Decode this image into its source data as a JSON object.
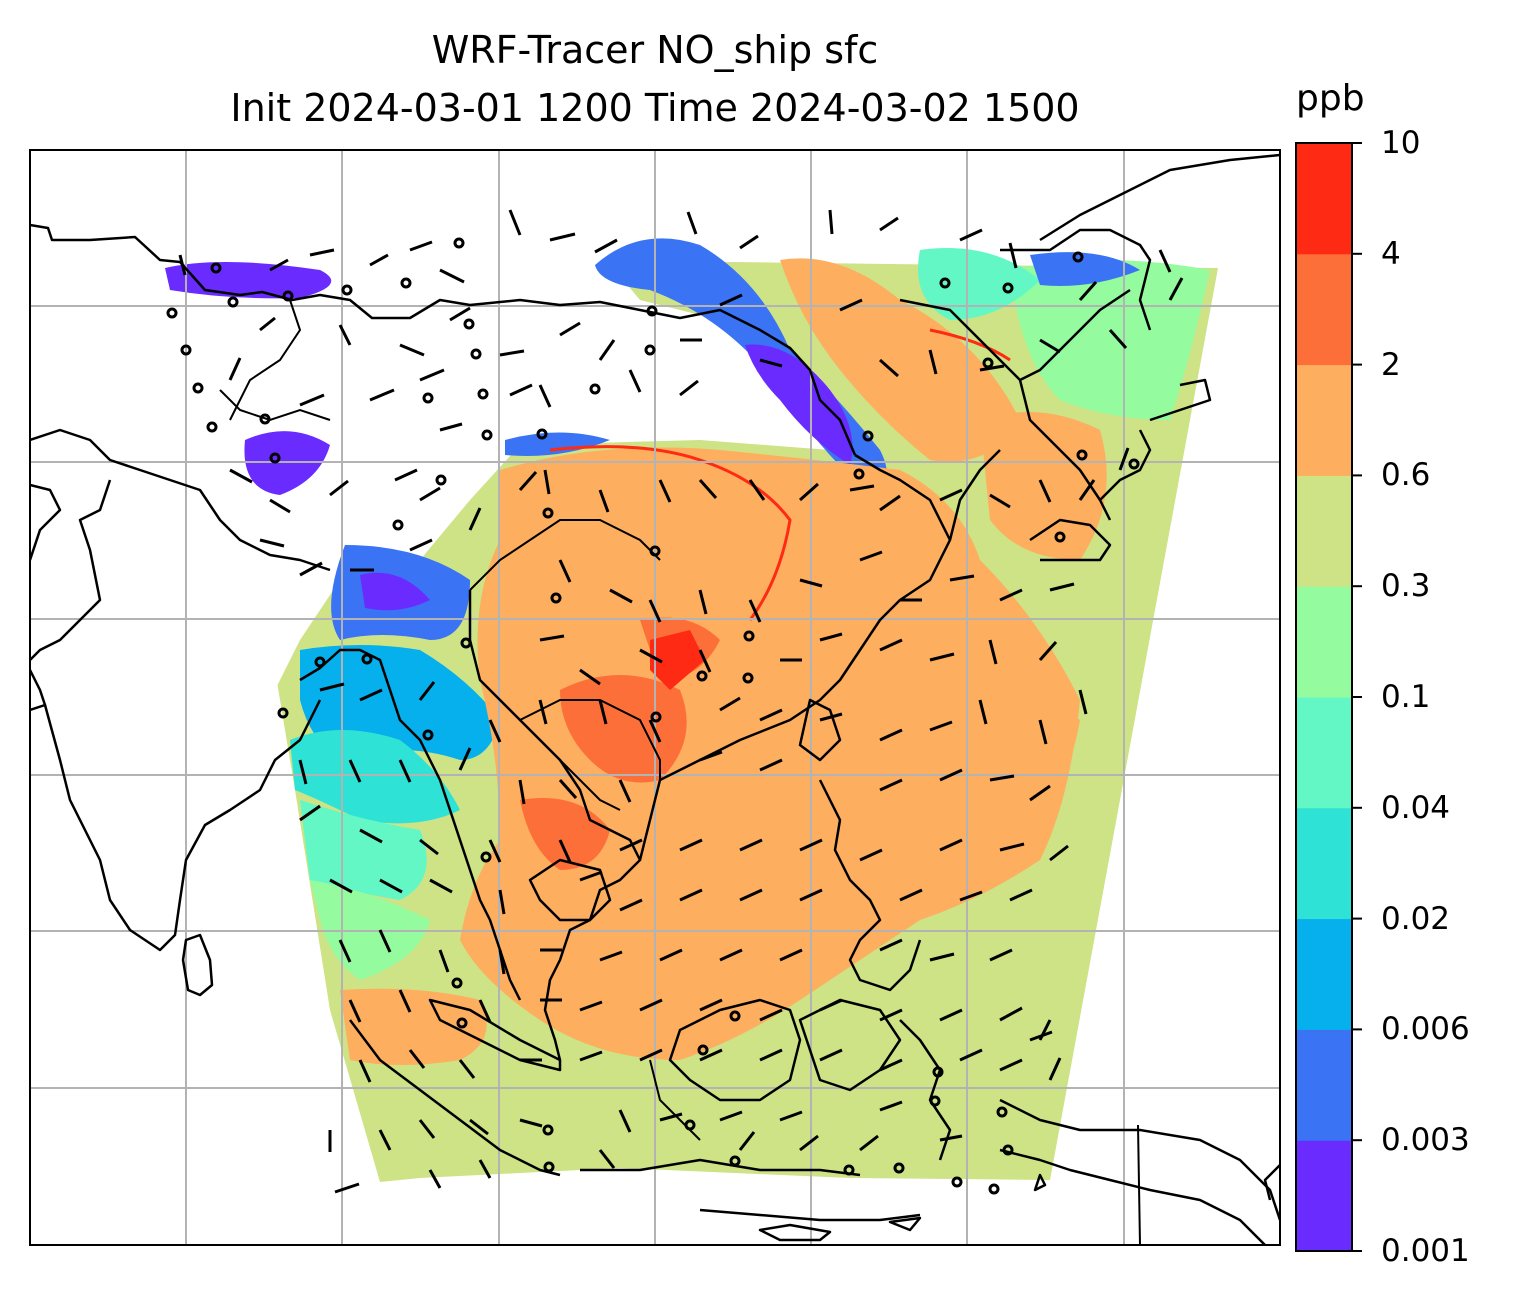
{
  "title": {
    "line1": "WRF-Tracer NO_ship sfc",
    "line2": "Init 2024-03-01 1200 Time 2024-03-02 1500"
  },
  "colorbar": {
    "unit": "ppb",
    "tick_labels": [
      "0.001",
      "0.003",
      "0.006",
      "0.02",
      "0.04",
      "0.1",
      "0.3",
      "0.6",
      "2",
      "4",
      "10"
    ],
    "colors": [
      "#6a2bff",
      "#3b73f5",
      "#06b0ec",
      "#2fe2d6",
      "#62f7c4",
      "#95fb9f",
      "#cde385",
      "#fdae5f",
      "#fd6f38",
      "#ff2a14"
    ]
  },
  "map": {
    "features": [
      "coastlines",
      "country-borders",
      "lat-lon-gridlines",
      "wind-barbs",
      "tracer-concentration-fill"
    ],
    "domain_fill_color": "#cde385",
    "gridline_color": "#b3b3b3"
  }
}
